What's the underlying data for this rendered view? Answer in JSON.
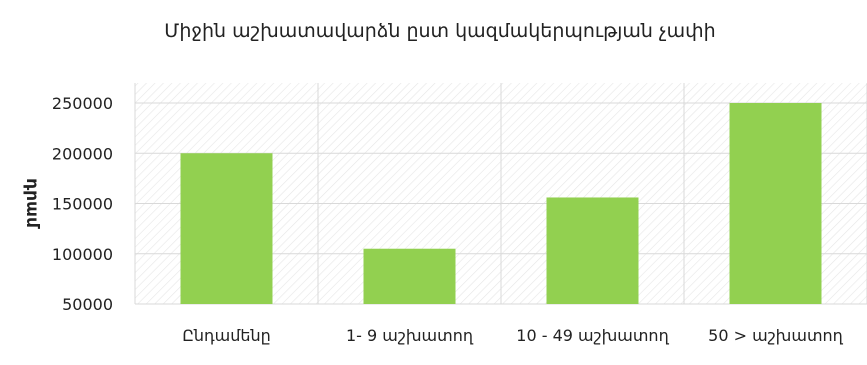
{
  "colors": {
    "bar": "#92d050",
    "grid": "#d9d9d9",
    "text": "#222222",
    "hatch": "#e6e6e6"
  },
  "chart_data": {
    "type": "bar",
    "title": "Միջին աշխատավարձն ըստ կազմակերպության չափի",
    "ylabel": "դրամ",
    "xlabel": "",
    "categories": [
      "Ընդամենը",
      "1- 9 աշխատող",
      "10 - 49 աշխատող",
      "50 >  աշխատող"
    ],
    "values": [
      200000,
      105000,
      156000,
      250000
    ],
    "ylim": [
      50000,
      250000
    ],
    "yticks": [
      50000,
      100000,
      150000,
      200000,
      250000
    ],
    "ytick_labels": [
      "50000",
      "100000",
      "150000",
      "200000",
      "250000"
    ],
    "grid": true,
    "legend": "none"
  }
}
